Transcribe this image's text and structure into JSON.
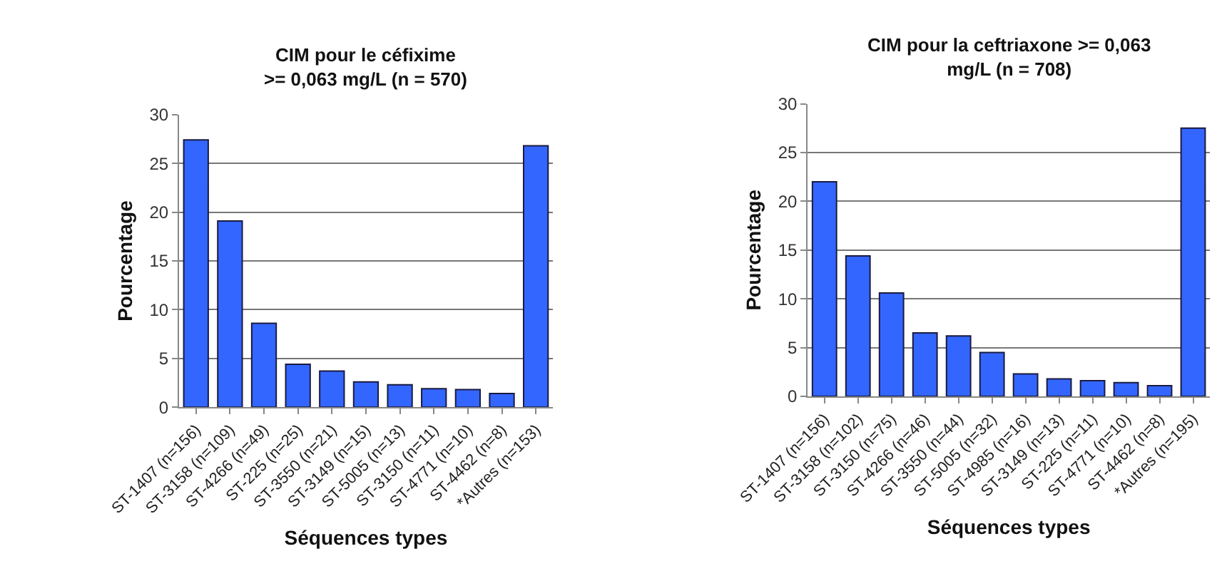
{
  "chart_data": [
    {
      "type": "bar",
      "title": "CIM pour le céfixime\n>= 0,063 mg/L (n = 570)",
      "xlabel": "Séquences types",
      "ylabel": "Pourcentage",
      "categories": [
        "ST-1407 (n=156)",
        "ST-3158 (n=109)",
        "ST-4266 (n=49)",
        "ST-225 (n=25)",
        "ST-3550 (n=21)",
        "ST-3149 (n=15)",
        "ST-5005 (n=13)",
        "ST-3150 (n=11)",
        "ST-4771 (n=10)",
        "ST-4462 (n=8)",
        "*Autres (n=153)"
      ],
      "series": [
        {
          "color": "#3366ff",
          "values": [
            27.4,
            19.1,
            8.6,
            4.4,
            3.7,
            2.6,
            2.3,
            1.9,
            1.8,
            1.4,
            26.8
          ]
        }
      ],
      "ylim": [
        0,
        30
      ],
      "yticks": [
        0,
        5,
        10,
        15,
        20,
        25,
        30
      ],
      "grid": "y"
    },
    {
      "type": "bar",
      "title": "CIM pour la ceftriaxone >= 0,063\nmg/L (n = 708)",
      "xlabel": "Séquences types",
      "ylabel": "Pourcentage",
      "categories": [
        "ST-1407 (n=156)",
        "ST-3158 (n=102)",
        "ST-3150 (n=75)",
        "ST-4266 (n=46)",
        "ST-3550 (n=44)",
        "ST-5005 (n=32)",
        "ST-4985 (n=16)",
        "ST-3149 (n=13)",
        "ST-225 (n=11)",
        "ST-4771 (n=10)",
        "ST-4462 (n=8)",
        "*Autres (n=195)"
      ],
      "series": [
        {
          "color": "#3366ff",
          "values": [
            22.0,
            14.4,
            10.6,
            6.5,
            6.2,
            4.5,
            2.3,
            1.8,
            1.6,
            1.4,
            1.1,
            27.5
          ]
        }
      ],
      "ylim": [
        0,
        30
      ],
      "yticks": [
        0,
        5,
        10,
        15,
        20,
        25,
        30
      ],
      "grid": "y"
    }
  ]
}
